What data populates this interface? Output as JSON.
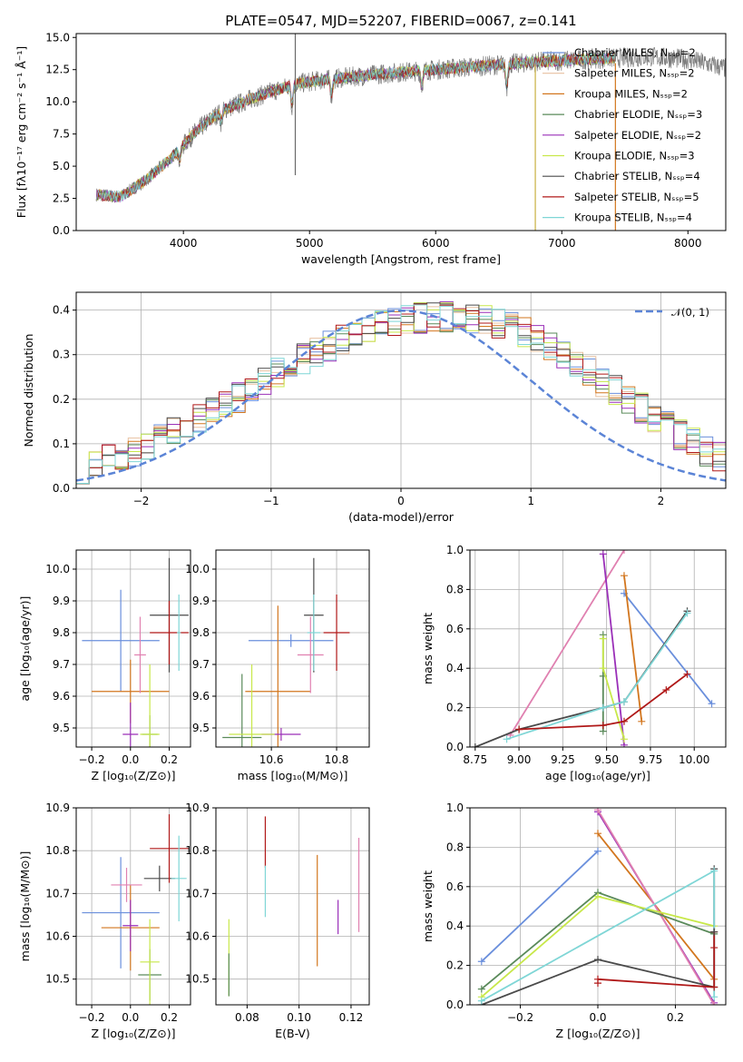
{
  "chart_data": [
    {
      "type": "line",
      "panel": "spectrum",
      "title": "PLATE=0547, MJD=52207, FIBERID=0067, z=0.141",
      "xlabel": "wavelength [Angstrom, rest frame]",
      "ylabel": "Flux [fλ10⁻¹⁷ erg cm⁻² s⁻¹ Å⁻¹]",
      "xlim": [
        3150,
        8300
      ],
      "ylim": [
        0,
        15.3
      ],
      "xticks": [
        4000,
        5000,
        6000,
        7000,
        8000
      ],
      "yticks": [
        0.0,
        2.5,
        5.0,
        7.5,
        10.0,
        12.5,
        15.0
      ],
      "data_start": 3310,
      "model_end": 7420,
      "continuum": {
        "x": [
          3310,
          3500,
          3700,
          3900,
          4100,
          4300,
          4500,
          4700,
          4900,
          5100,
          5300,
          5600,
          6000,
          6400,
          6800,
          7200,
          7420,
          7700,
          8000,
          8300
        ],
        "y": [
          2.8,
          2.6,
          3.9,
          5.6,
          7.7,
          9.3,
          10.1,
          10.8,
          11.4,
          11.7,
          11.9,
          12.2,
          12.5,
          12.8,
          13.1,
          13.3,
          13.4,
          13.5,
          13.3,
          12.6
        ]
      },
      "dips": [
        {
          "x": 4861,
          "depth": 1.6
        },
        {
          "x": 5175,
          "depth": 1.3
        },
        {
          "x": 5890,
          "depth": 1.2
        },
        {
          "x": 6563,
          "depth": 1.8
        },
        {
          "x": 4300,
          "depth": 0.9
        },
        {
          "x": 3970,
          "depth": 1.0
        }
      ],
      "spikes": [
        {
          "x": 4887,
          "y0": 4.3,
          "y1": 15.3
        },
        {
          "x": 6790,
          "y0": 0.0,
          "y1": 12.9
        },
        {
          "x": 7425,
          "y0": 0.0,
          "y1": 13.0
        }
      ],
      "series": [
        {
          "name": "Chabrier MILES, Nₛₛₚ=2",
          "color": "#6a8fdc"
        },
        {
          "name": "Salpeter MILES, Nₛₛₚ=2",
          "color": "#e8c0a0"
        },
        {
          "name": "Kroupa MILES, Nₛₛₚ=2",
          "color": "#d2761e"
        },
        {
          "name": "Chabrier ELODIE, Nₛₛₚ=3",
          "color": "#5a8a5a"
        },
        {
          "name": "Salpeter ELODIE, Nₛₛₚ=2",
          "color": "#9a2fb8"
        },
        {
          "name": "Kroupa ELODIE, Nₛₛₚ=3",
          "color": "#c8e84a"
        },
        {
          "name": "Chabrier STELIB, Nₛₛₚ=4",
          "color": "#4a4a4a"
        },
        {
          "name": "Salpeter STELIB, Nₛₛₚ=5",
          "color": "#b01818"
        },
        {
          "name": "Kroupa STELIB, Nₛₛₚ=4",
          "color": "#7fd6d6"
        }
      ],
      "legend": "right"
    },
    {
      "type": "histogram",
      "panel": "residuals",
      "xlabel": "(data-model)/error",
      "ylabel": "Normed distribution",
      "xlim": [
        -2.5,
        2.5
      ],
      "ylim": [
        0,
        0.44
      ],
      "xticks": [
        -2,
        -1,
        0,
        1,
        2
      ],
      "yticks": [
        0.0,
        0.1,
        0.2,
        0.3,
        0.4
      ],
      "reference": {
        "name": "𝒩(0, 1)",
        "mean": 0,
        "sigma": 1,
        "color": "#5b84d6"
      },
      "bin_width": 0.1,
      "legend": "upper-right",
      "base": [
        0.045,
        0.055,
        0.065,
        0.075,
        0.085,
        0.095,
        0.11,
        0.125,
        0.14,
        0.16,
        0.175,
        0.19,
        0.205,
        0.225,
        0.245,
        0.26,
        0.275,
        0.29,
        0.305,
        0.32,
        0.335,
        0.345,
        0.355,
        0.365,
        0.372,
        0.378,
        0.382,
        0.385,
        0.386,
        0.385,
        0.382,
        0.378,
        0.372,
        0.362,
        0.35,
        0.336,
        0.32,
        0.302,
        0.282,
        0.262,
        0.24,
        0.22,
        0.2,
        0.18,
        0.16,
        0.14,
        0.12,
        0.1,
        0.085,
        0.07
      ]
    },
    {
      "type": "errorbar",
      "panel": "age-vs-Z",
      "xlabel": "Z [log₁₀(Z/Z⊙)]",
      "ylabel": "age  [log₁₀(age/yr)]",
      "xlim": [
        -0.28,
        0.31
      ],
      "ylim": [
        9.44,
        10.06
      ],
      "xticks": [
        -0.2,
        0.0,
        0.2
      ],
      "yticks": [
        9.5,
        9.6,
        9.7,
        9.8,
        9.9,
        10.0
      ],
      "points": [
        {
          "color": "#6a8fdc",
          "x": -0.05,
          "xerr": 0.2,
          "y": 9.775,
          "yerr": 0.16
        },
        {
          "color": "#d2761e",
          "x": 0.0,
          "xerr": 0.2,
          "y": 9.615,
          "yerr": 0.1
        },
        {
          "color": "#9a2fb8",
          "x": 0.0,
          "xerr": 0.04,
          "y": 9.48,
          "yerr": 0.1
        },
        {
          "color": "#e080b0",
          "x": 0.05,
          "xerr": 0.03,
          "y": 9.73,
          "yerr": 0.12
        },
        {
          "color": "#5a8a5a",
          "x": 0.1,
          "xerr": 0.04,
          "y": 9.48,
          "yerr": 0.06
        },
        {
          "color": "#c8e84a",
          "x": 0.1,
          "xerr": 0.05,
          "y": 9.48,
          "yerr": 0.22
        },
        {
          "color": "#4a4a4a",
          "x": 0.2,
          "xerr": 0.1,
          "y": 9.855,
          "yerr": 0.18
        },
        {
          "color": "#b01818",
          "x": 0.2,
          "xerr": 0.1,
          "y": 9.8,
          "yerr": 0.1
        },
        {
          "color": "#7fd6d6",
          "x": 0.25,
          "xerr": 0.01,
          "y": 9.8,
          "yerr": 0.12
        }
      ]
    },
    {
      "type": "errorbar",
      "panel": "age-vs-mass",
      "xlabel": "mass [log₁₀(M/M⊙)]",
      "ylabel": "",
      "xlim": [
        10.43,
        10.9
      ],
      "ylim": [
        9.44,
        10.06
      ],
      "xticks": [
        10.6,
        10.8
      ],
      "yticks": [
        9.5,
        9.6,
        9.7,
        9.8,
        9.9,
        10.0
      ],
      "points": [
        {
          "color": "#6a8fdc",
          "x": 10.66,
          "xerr": 0.13,
          "y": 9.775,
          "yerr": 0.02
        },
        {
          "color": "#d2761e",
          "x": 10.62,
          "xerr": 0.1,
          "y": 9.615,
          "yerr": 0.27
        },
        {
          "color": "#9a2fb8",
          "x": 10.63,
          "xerr": 0.06,
          "y": 9.48,
          "yerr": 0.02
        },
        {
          "color": "#e080b0",
          "x": 10.72,
          "xerr": 0.04,
          "y": 9.73,
          "yerr": 0.12
        },
        {
          "color": "#5a8a5a",
          "x": 10.51,
          "xerr": 0.06,
          "y": 9.47,
          "yerr": 0.2
        },
        {
          "color": "#c8e84a",
          "x": 10.54,
          "xerr": 0.07,
          "y": 9.48,
          "yerr": 0.22
        },
        {
          "color": "#4a4a4a",
          "x": 10.73,
          "xerr": 0.03,
          "y": 9.855,
          "yerr": 0.18
        },
        {
          "color": "#b01818",
          "x": 10.8,
          "xerr": 0.04,
          "y": 9.8,
          "yerr": 0.12
        },
        {
          "color": "#7fd6d6",
          "x": 10.73,
          "xerr": 0.02,
          "y": 9.8,
          "yerr": 0.12
        }
      ]
    },
    {
      "type": "line",
      "panel": "weight-vs-age",
      "xlabel": "age  [log₁₀(age/yr)]",
      "ylabel": "mass weight",
      "xlim": [
        8.72,
        10.18
      ],
      "ylim": [
        0,
        1
      ],
      "xticks": [
        8.75,
        9.0,
        9.25,
        9.5,
        9.75,
        10.0
      ],
      "yticks": [
        0.0,
        0.2,
        0.4,
        0.6,
        0.8,
        1.0
      ],
      "series": [
        {
          "color": "#6a8fdc",
          "x": [
            9.6,
            10.1
          ],
          "y": [
            0.78,
            0.22
          ]
        },
        {
          "color": "#e080b0",
          "x": [
            8.95,
            9.6
          ],
          "y": [
            0.06,
            1.0
          ]
        },
        {
          "color": "#d2761e",
          "x": [
            9.6,
            9.7
          ],
          "y": [
            0.87,
            0.13
          ]
        },
        {
          "color": "#9a2fb8",
          "x": [
            9.48,
            9.6
          ],
          "y": [
            0.98,
            0.01
          ]
        },
        {
          "color": "#5a8a5a",
          "x": [
            9.48,
            9.48,
            9.48
          ],
          "y": [
            0.57,
            0.36,
            0.08
          ]
        },
        {
          "color": "#c8e84a",
          "x": [
            9.48,
            9.48,
            9.6
          ],
          "y": [
            0.55,
            0.4,
            0.04
          ]
        },
        {
          "color": "#4a4a4a",
          "x": [
            8.75,
            9.0,
            9.48,
            9.6,
            9.96
          ],
          "y": [
            0.0,
            0.09,
            0.2,
            0.23,
            0.69
          ]
        },
        {
          "color": "#7fd6d6",
          "x": [
            8.93,
            9.48,
            9.6,
            9.96
          ],
          "y": [
            0.04,
            0.2,
            0.23,
            0.68
          ]
        },
        {
          "color": "#b01818",
          "x": [
            9.0,
            9.48,
            9.6,
            9.84,
            9.96
          ],
          "y": [
            0.09,
            0.11,
            0.13,
            0.29,
            0.37
          ]
        }
      ]
    },
    {
      "type": "errorbar",
      "panel": "mass-vs-Z",
      "xlabel": "Z [log₁₀(Z/Z⊙)]",
      "ylabel": "mass [log₁₀(M/M⊙)]",
      "xlim": [
        -0.28,
        0.31
      ],
      "ylim": [
        10.44,
        10.9
      ],
      "xticks": [
        -0.2,
        0.0,
        0.2
      ],
      "yticks": [
        10.5,
        10.6,
        10.7,
        10.8,
        10.9
      ],
      "points": [
        {
          "color": "#6a8fdc",
          "x": -0.05,
          "xerr": 0.2,
          "y": 10.655,
          "yerr": 0.13
        },
        {
          "color": "#d2761e",
          "x": 0.0,
          "xerr": 0.15,
          "y": 10.62,
          "yerr": 0.1
        },
        {
          "color": "#9a2fb8",
          "x": 0.0,
          "xerr": 0.04,
          "y": 10.625,
          "yerr": 0.06
        },
        {
          "color": "#e080b0",
          "x": -0.02,
          "xerr": 0.08,
          "y": 10.72,
          "yerr": 0.04
        },
        {
          "color": "#5a8a5a",
          "x": 0.1,
          "xerr": 0.06,
          "y": 10.51,
          "yerr": 0.06
        },
        {
          "color": "#c8e84a",
          "x": 0.1,
          "xerr": 0.05,
          "y": 10.54,
          "yerr": 0.1
        },
        {
          "color": "#4a4a4a",
          "x": 0.15,
          "xerr": 0.08,
          "y": 10.735,
          "yerr": 0.03
        },
        {
          "color": "#b01818",
          "x": 0.2,
          "xerr": 0.1,
          "y": 10.805,
          "yerr": 0.08
        },
        {
          "color": "#7fd6d6",
          "x": 0.25,
          "xerr": 0.04,
          "y": 10.735,
          "yerr": 0.1
        }
      ]
    },
    {
      "type": "errorbar",
      "panel": "mass-vs-ebv",
      "xlabel": "E(B-V)",
      "ylabel": "",
      "xlim": [
        0.068,
        0.127
      ],
      "ylim": [
        10.44,
        10.9
      ],
      "xticks": [
        0.08,
        0.1,
        0.12
      ],
      "yticks": [
        10.5,
        10.6,
        10.7,
        10.8,
        10.9
      ],
      "points": [
        {
          "color": "#c8e84a",
          "x": 0.073,
          "xerr": 0,
          "y": 10.55,
          "yerr": 0.09
        },
        {
          "color": "#5a8a5a",
          "x": 0.073,
          "xerr": 0,
          "y": 10.51,
          "yerr": 0.05
        },
        {
          "color": "#b01818",
          "x": 0.087,
          "xerr": 0,
          "y": 10.82,
          "yerr": 0.06
        },
        {
          "color": "#7fd6d6",
          "x": 0.087,
          "xerr": 0,
          "y": 10.705,
          "yerr": 0.06
        },
        {
          "color": "#d2761e",
          "x": 0.107,
          "xerr": 0,
          "y": 10.66,
          "yerr": 0.13
        },
        {
          "color": "#9a2fb8",
          "x": 0.115,
          "xerr": 0,
          "y": 10.645,
          "yerr": 0.04
        },
        {
          "color": "#e080b0",
          "x": 0.123,
          "xerr": 0,
          "y": 10.72,
          "yerr": 0.11
        }
      ]
    },
    {
      "type": "line",
      "panel": "weight-vs-Z",
      "xlabel": "Z [log₁₀(Z/Z⊙)]",
      "ylabel": "mass weight",
      "xlim": [
        -0.33,
        0.33
      ],
      "ylim": [
        0,
        1
      ],
      "xticks": [
        -0.2,
        0.0,
        0.2
      ],
      "yticks": [
        0.0,
        0.2,
        0.4,
        0.6,
        0.8,
        1.0
      ],
      "series": [
        {
          "color": "#6a8fdc",
          "x": [
            -0.3,
            0.0
          ],
          "y": [
            0.22,
            0.78
          ]
        },
        {
          "color": "#d2761e",
          "x": [
            0.0,
            0.3
          ],
          "y": [
            0.87,
            0.13
          ]
        },
        {
          "color": "#9a2fb8",
          "x": [
            0.0,
            0.3
          ],
          "y": [
            0.98,
            0.01
          ]
        },
        {
          "color": "#e080b0",
          "x": [
            0.0,
            0.3
          ],
          "y": [
            0.99,
            0.0
          ]
        },
        {
          "color": "#5a8a5a",
          "x": [
            -0.3,
            0.0,
            0.3
          ],
          "y": [
            0.08,
            0.57,
            0.36
          ]
        },
        {
          "color": "#c8e84a",
          "x": [
            -0.3,
            0.0,
            0.3
          ],
          "y": [
            0.04,
            0.55,
            0.4
          ]
        },
        {
          "color": "#4a4a4a",
          "x": [
            -0.3,
            0.0,
            0.3,
            0.3
          ],
          "y": [
            0.0,
            0.23,
            0.09,
            0.69
          ]
        },
        {
          "color": "#7fd6d6",
          "x": [
            -0.3,
            0.3,
            0.3
          ],
          "y": [
            0.02,
            0.68,
            0.04
          ]
        },
        {
          "color": "#b01818",
          "x": [
            0.0,
            0.3,
            0.3
          ],
          "y": [
            0.13,
            0.09,
            0.37
          ]
        }
      ],
      "markers": [
        {
          "color": "#b01818",
          "x": 0.0,
          "y": 0.11
        },
        {
          "color": "#b01818",
          "x": 0.3,
          "y": 0.29
        },
        {
          "color": "#4a4a4a",
          "x": 0.3,
          "y": 0.37
        }
      ]
    }
  ]
}
